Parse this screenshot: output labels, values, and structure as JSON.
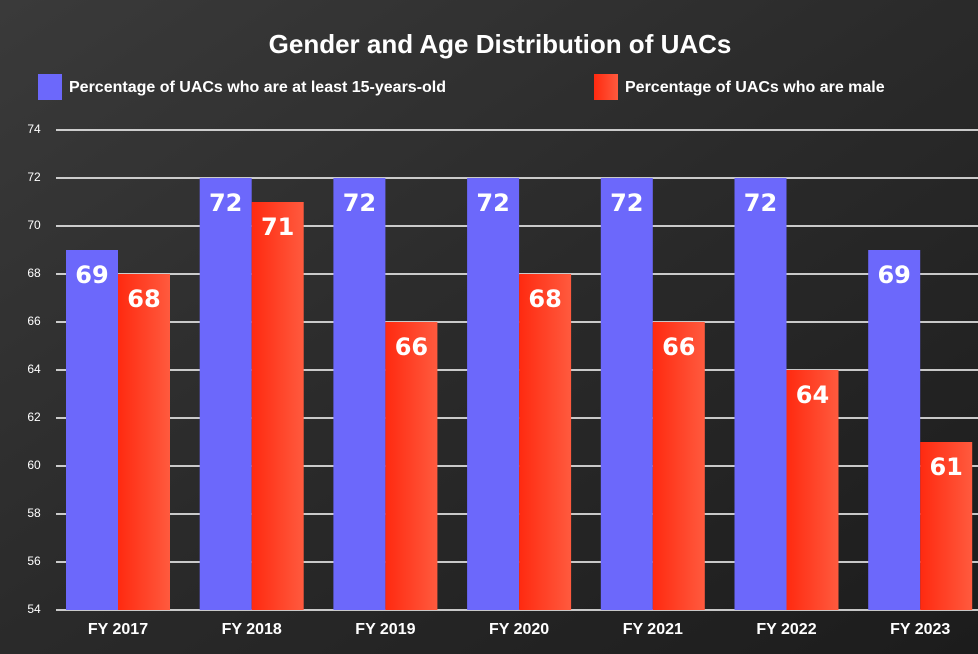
{
  "chart_data": {
    "type": "bar",
    "title": "Gender and Age Distribution of UACs",
    "categories": [
      "FY 2017",
      "FY 2018",
      "FY 2019",
      "FY 2020",
      "FY 2021",
      "FY 2022",
      "FY 2023"
    ],
    "series": [
      {
        "name": "Percentage of UACs who are at least 15-years-old",
        "color": "#6c68fb",
        "values": [
          69,
          72,
          72,
          72,
          72,
          72,
          69
        ]
      },
      {
        "name": "Percentage of UACs who are male",
        "color": "#ff2e12",
        "values": [
          68,
          71,
          66,
          68,
          66,
          64,
          61
        ]
      }
    ],
    "ylim": [
      54,
      74
    ],
    "yticks": [
      54,
      56,
      58,
      60,
      62,
      64,
      66,
      68,
      70,
      72,
      74
    ],
    "grid": true
  }
}
